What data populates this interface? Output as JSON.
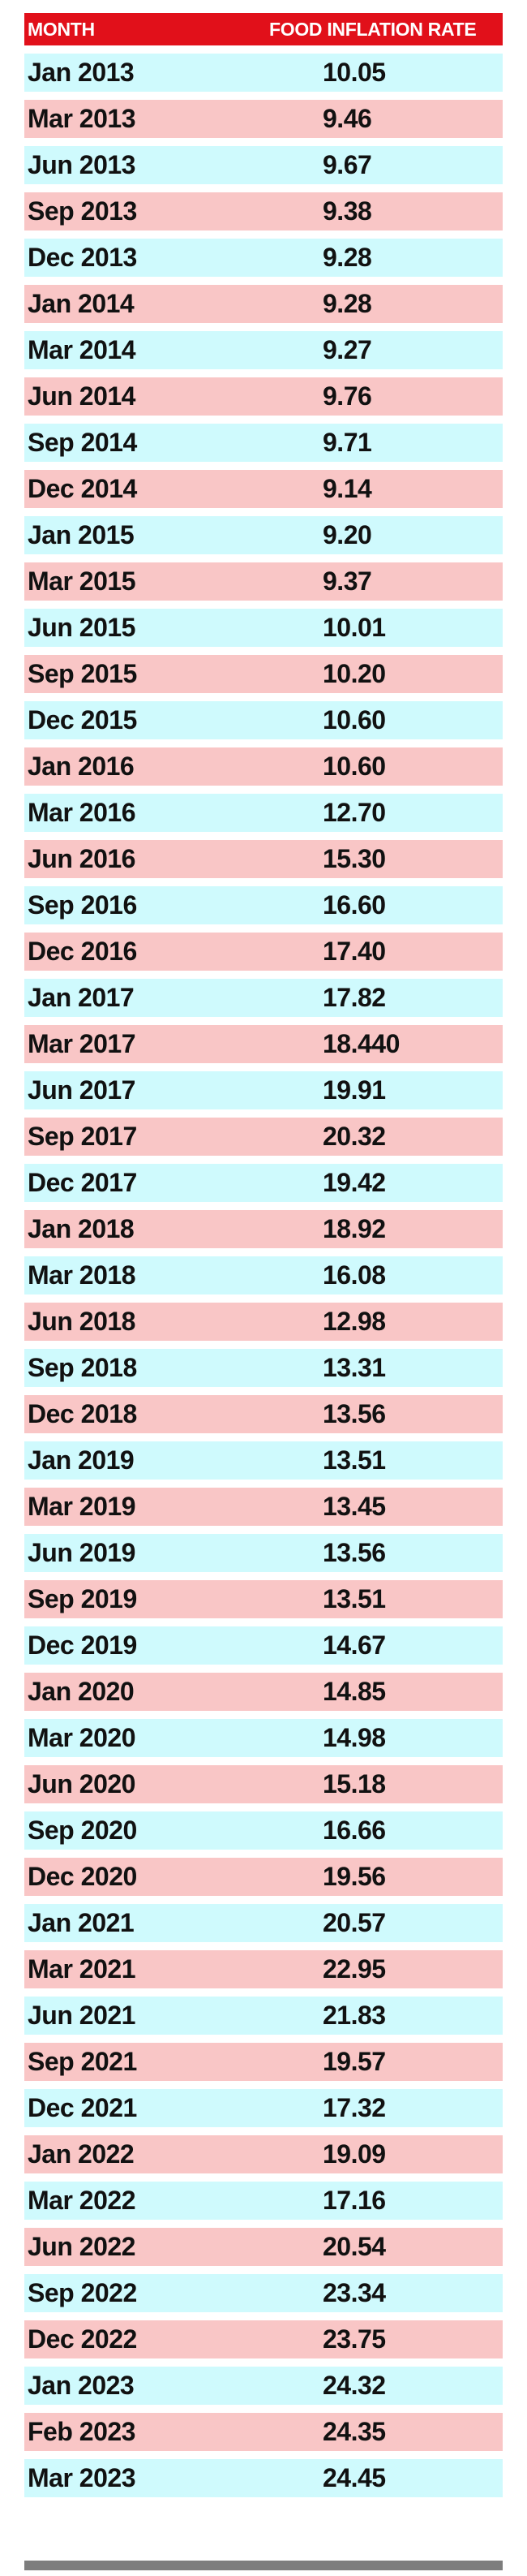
{
  "chart_data": {
    "type": "table",
    "columns": [
      "MONTH",
      "FOOD INFLATION RATE"
    ],
    "rows": [
      [
        "Jan 2013",
        "10.05"
      ],
      [
        "Mar 2013",
        "9.46"
      ],
      [
        "Jun 2013",
        "9.67"
      ],
      [
        "Sep 2013",
        "9.38"
      ],
      [
        "Dec 2013",
        "9.28"
      ],
      [
        "Jan 2014",
        "9.28"
      ],
      [
        "Mar 2014",
        "9.27"
      ],
      [
        "Jun 2014",
        "9.76"
      ],
      [
        "Sep 2014",
        "9.71"
      ],
      [
        "Dec 2014",
        "9.14"
      ],
      [
        "Jan 2015",
        "9.20"
      ],
      [
        "Mar 2015",
        "9.37"
      ],
      [
        "Jun 2015",
        "10.01"
      ],
      [
        "Sep 2015",
        "10.20"
      ],
      [
        "Dec 2015",
        "10.60"
      ],
      [
        "Jan 2016",
        "10.60"
      ],
      [
        "Mar 2016",
        "12.70"
      ],
      [
        "Jun 2016",
        "15.30"
      ],
      [
        "Sep 2016",
        "16.60"
      ],
      [
        "Dec 2016",
        "17.40"
      ],
      [
        "Jan 2017",
        "17.82"
      ],
      [
        "Mar 2017",
        "18.440"
      ],
      [
        "Jun 2017",
        "19.91"
      ],
      [
        "Sep 2017",
        "20.32"
      ],
      [
        "Dec 2017",
        "19.42"
      ],
      [
        "Jan 2018",
        "18.92"
      ],
      [
        "Mar 2018",
        "16.08"
      ],
      [
        "Jun 2018",
        "12.98"
      ],
      [
        "Sep 2018",
        "13.31"
      ],
      [
        "Dec 2018",
        "13.56"
      ],
      [
        "Jan 2019",
        "13.51"
      ],
      [
        "Mar 2019",
        "13.45"
      ],
      [
        "Jun 2019",
        "13.56"
      ],
      [
        "Sep 2019",
        "13.51"
      ],
      [
        "Dec 2019",
        "14.67"
      ],
      [
        "Jan 2020",
        "14.85"
      ],
      [
        "Mar 2020",
        "14.98"
      ],
      [
        "Jun 2020",
        "15.18"
      ],
      [
        "Sep 2020",
        "16.66"
      ],
      [
        "Dec 2020",
        "19.56"
      ],
      [
        "Jan 2021",
        "20.57"
      ],
      [
        "Mar 2021",
        "22.95"
      ],
      [
        "Jun 2021",
        "21.83"
      ],
      [
        "Sep 2021",
        "19.57"
      ],
      [
        "Dec 2021",
        "17.32"
      ],
      [
        "Jan 2022",
        "19.09"
      ],
      [
        "Mar 2022",
        "17.16"
      ],
      [
        "Jun 2022",
        "20.54"
      ],
      [
        "Sep 2022",
        "23.34"
      ],
      [
        "Dec 2022",
        "23.75"
      ],
      [
        "Jan 2023",
        "24.32"
      ],
      [
        "Feb 2023",
        "24.35"
      ],
      [
        "Mar 2023",
        "24.45"
      ]
    ],
    "colors": {
      "header": "#e1101a",
      "row_cyan": "#cffafd",
      "row_pink": "#f9c6c6",
      "bottom_bar": "#7d7d7d"
    }
  }
}
